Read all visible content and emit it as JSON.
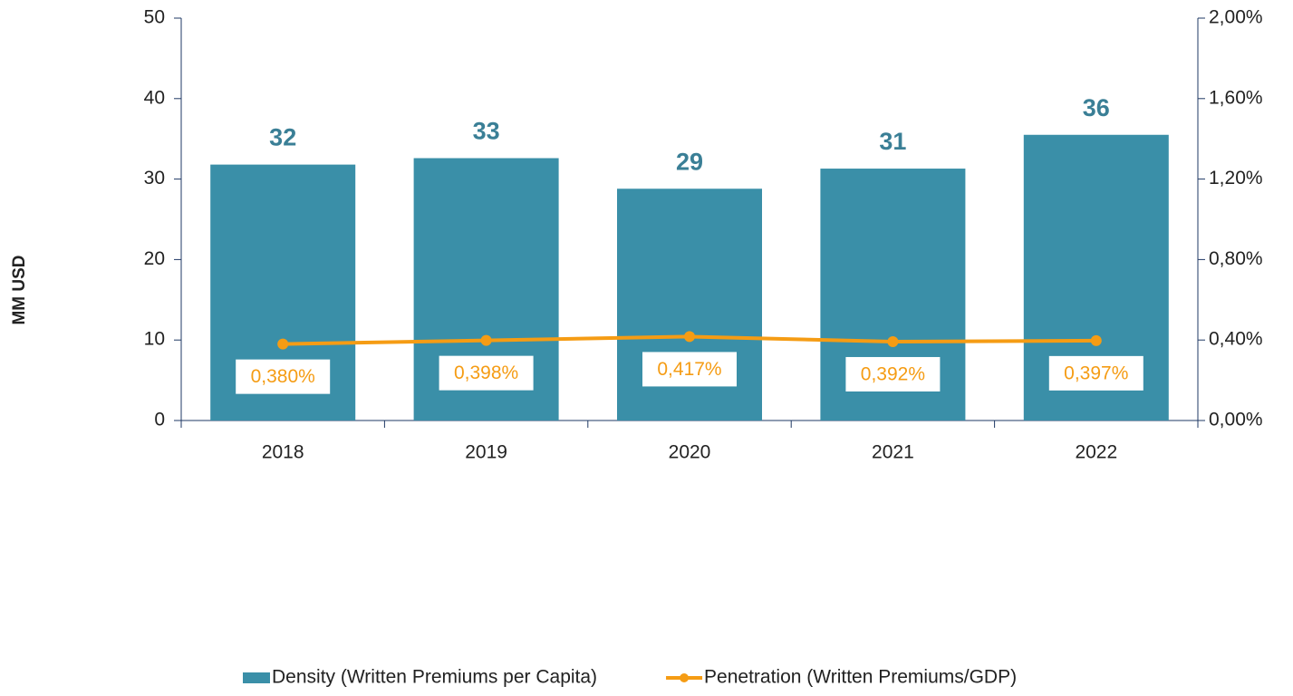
{
  "chart_data": {
    "type": "bar_line",
    "y_label": "MM USD",
    "categories": [
      "2018",
      "2019",
      "2020",
      "2021",
      "2022"
    ],
    "series": [
      {
        "name": "Density (Written Premiums per Capita)",
        "color": "#3a8fa8",
        "type": "bar",
        "values": [
          31.8,
          32.6,
          28.8,
          31.3,
          35.5
        ],
        "value_labels": [
          "32",
          "33",
          "29",
          "31",
          "36"
        ]
      },
      {
        "name": "Penetration (Written Premiums/GDP)",
        "color": "#f59c14",
        "type": "line",
        "axis": "y2",
        "values": [
          0.38,
          0.398,
          0.417,
          0.392,
          0.397
        ],
        "value_labels": [
          "0,380%",
          "0,398%",
          "0,417%",
          "0,392%",
          "0,397%"
        ]
      }
    ],
    "ylim": [
      0,
      50
    ],
    "yticks": [
      0,
      10,
      20,
      30,
      40,
      50
    ],
    "y2lim": [
      0,
      2
    ],
    "y2ticks": [
      {
        "value": 0,
        "label": "0,00%"
      },
      {
        "value": 0.4,
        "label": "0,40%"
      },
      {
        "value": 0.8,
        "label": "0,80%"
      },
      {
        "value": 1.2,
        "label": "1,20%"
      },
      {
        "value": 1.6,
        "label": "1,60%"
      },
      {
        "value": 2,
        "label": "2,00%"
      }
    ],
    "legend": "bottom"
  }
}
